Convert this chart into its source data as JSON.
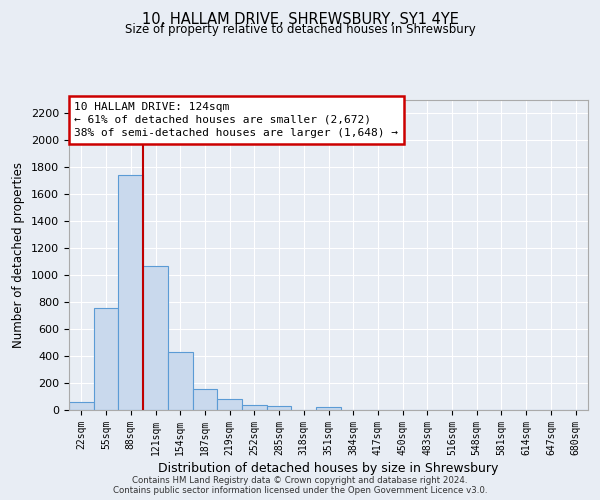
{
  "title": "10, HALLAM DRIVE, SHREWSBURY, SY1 4YE",
  "subtitle": "Size of property relative to detached houses in Shrewsbury",
  "xlabel": "Distribution of detached houses by size in Shrewsbury",
  "ylabel": "Number of detached properties",
  "bar_labels": [
    "22sqm",
    "55sqm",
    "88sqm",
    "121sqm",
    "154sqm",
    "187sqm",
    "219sqm",
    "252sqm",
    "285sqm",
    "318sqm",
    "351sqm",
    "384sqm",
    "417sqm",
    "450sqm",
    "483sqm",
    "516sqm",
    "548sqm",
    "581sqm",
    "614sqm",
    "647sqm",
    "680sqm"
  ],
  "bar_values": [
    60,
    760,
    1740,
    1070,
    430,
    155,
    80,
    40,
    30,
    0,
    20,
    0,
    0,
    0,
    0,
    0,
    0,
    0,
    0,
    0,
    0
  ],
  "ylim": [
    0,
    2300
  ],
  "yticks": [
    0,
    200,
    400,
    600,
    800,
    1000,
    1200,
    1400,
    1600,
    1800,
    2000,
    2200
  ],
  "bar_color": "#c9d9ed",
  "bar_edge_color": "#5b9bd5",
  "annotation_line1": "10 HALLAM DRIVE: 124sqm",
  "annotation_line2": "← 61% of detached houses are smaller (2,672)",
  "annotation_line3": "38% of semi-detached houses are larger (1,648) →",
  "vline_x_index": 3,
  "vline_color": "#c00000",
  "bg_color": "#e8edf4",
  "footer_line1": "Contains HM Land Registry data © Crown copyright and database right 2024.",
  "footer_line2": "Contains public sector information licensed under the Open Government Licence v3.0."
}
